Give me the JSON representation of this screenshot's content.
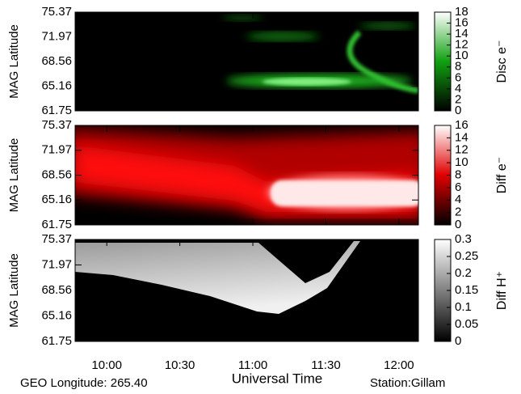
{
  "chart_data": [
    {
      "type": "heatmap",
      "ylabel": "MAG Latitude",
      "ylim": [
        61.75,
        75.37
      ],
      "yticks": [
        61.75,
        65.16,
        68.56,
        71.97,
        75.37
      ],
      "colorbar_label": "Disc e⁻",
      "colorbar_lim": [
        0,
        18
      ],
      "colorbar_ticks": [
        0,
        2,
        4,
        6,
        8,
        10,
        12,
        14,
        16,
        18
      ],
      "colormap": [
        "#000000",
        "#10a010",
        "#ffffff"
      ]
    },
    {
      "type": "heatmap",
      "ylabel": "MAG Latitude",
      "ylim": [
        61.75,
        75.37
      ],
      "yticks": [
        61.75,
        65.16,
        68.56,
        71.97,
        75.37
      ],
      "colorbar_label": "Diff e⁻",
      "colorbar_lim": [
        0,
        16
      ],
      "colorbar_ticks": [
        0,
        2,
        4,
        6,
        8,
        10,
        12,
        14,
        16
      ],
      "colormap": [
        "#000000",
        "#e00000",
        "#ffffff"
      ]
    },
    {
      "type": "heatmap",
      "ylabel": "MAG Latitude",
      "ylim": [
        61.75,
        75.37
      ],
      "yticks": [
        61.75,
        65.16,
        68.56,
        71.97,
        75.37
      ],
      "colorbar_label": "Diff H⁺",
      "colorbar_lim": [
        0,
        0.3
      ],
      "colorbar_ticks": [
        0,
        0.05,
        0.1,
        0.15,
        0.2,
        0.25,
        0.3
      ],
      "colormap": [
        "#000000",
        "#808080",
        "#ffffff"
      ]
    }
  ],
  "x_axis": {
    "label": "Universal Time",
    "xlim": [
      587,
      728
    ],
    "xticks": [
      {
        "value": 600,
        "label": "10:00"
      },
      {
        "value": 630,
        "label": "10:30"
      },
      {
        "value": 660,
        "label": "11:00"
      },
      {
        "value": 690,
        "label": "11:30"
      },
      {
        "value": 720,
        "label": "12:00"
      }
    ]
  },
  "footer_left": "GEO Longitude: 265.40",
  "footer_right": "Station:Gillam"
}
